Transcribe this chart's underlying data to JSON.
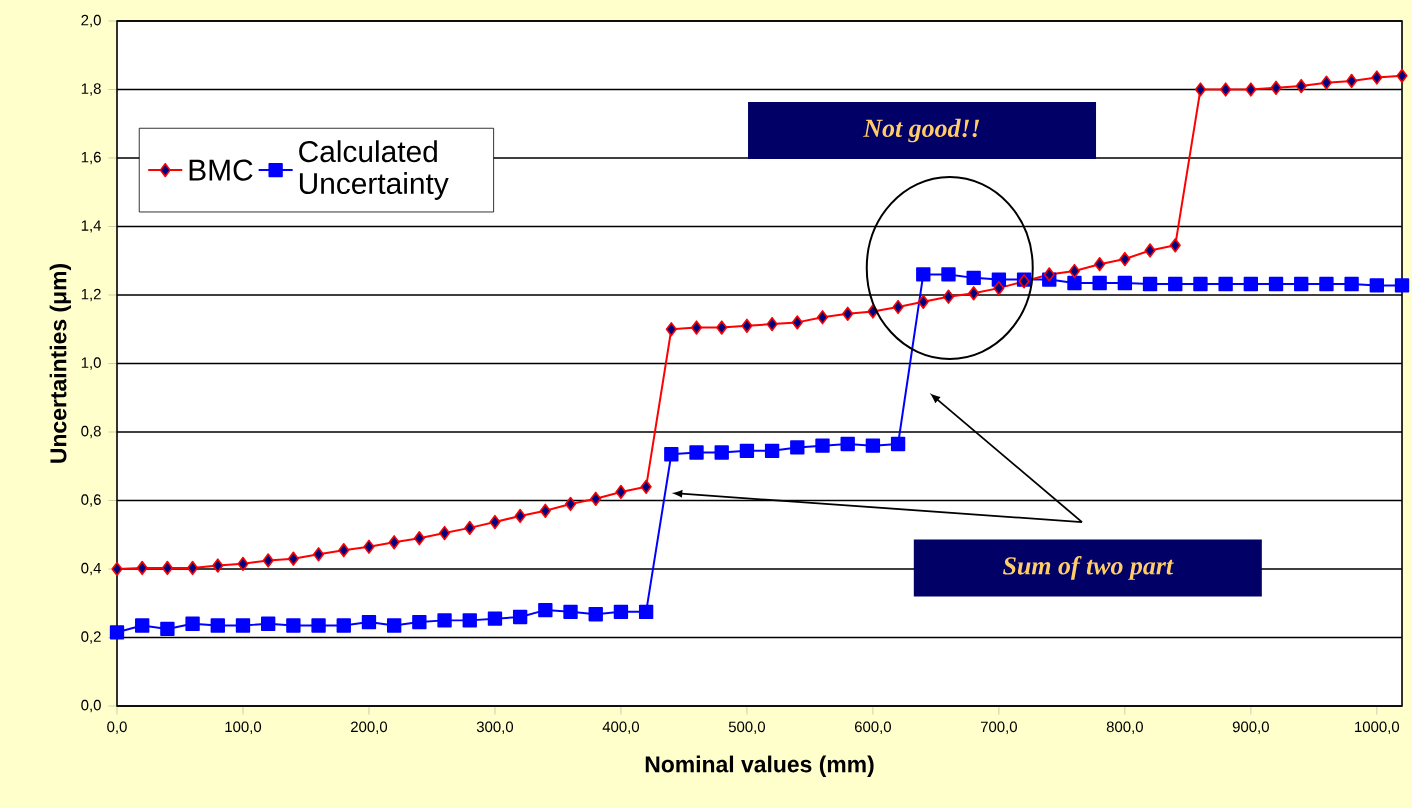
{
  "chart_data": {
    "type": "line",
    "xlabel": "Nominal values (mm)",
    "ylabel": "Uncertainties (μm)",
    "x": [
      0,
      20,
      40,
      60,
      80,
      100,
      120,
      140,
      160,
      180,
      200,
      220,
      240,
      260,
      280,
      300,
      320,
      340,
      360,
      380,
      400,
      420,
      440,
      460,
      480,
      500,
      520,
      540,
      560,
      580,
      600,
      620,
      640,
      660,
      680,
      700,
      720,
      740,
      760,
      780,
      800,
      820,
      840,
      860,
      880,
      900,
      920,
      940,
      960,
      980,
      1000,
      1020
    ],
    "series": [
      {
        "name": "BMC",
        "color": "#ff0000",
        "marker": "diamond",
        "values": [
          0.4,
          0.403,
          0.403,
          0.403,
          0.41,
          0.415,
          0.425,
          0.43,
          0.443,
          0.455,
          0.465,
          0.478,
          0.49,
          0.505,
          0.52,
          0.537,
          0.555,
          0.57,
          0.59,
          0.605,
          0.625,
          0.64,
          1.1,
          1.105,
          1.105,
          1.11,
          1.115,
          1.12,
          1.135,
          1.145,
          1.152,
          1.165,
          1.18,
          1.195,
          1.205,
          1.22,
          1.24,
          1.26,
          1.27,
          1.29,
          1.305,
          1.33,
          1.345,
          1.8,
          1.8,
          1.8,
          1.805,
          1.81,
          1.82,
          1.825,
          1.835,
          1.84
        ]
      },
      {
        "name": "Calculated Uncertainty",
        "color": "#0000ff",
        "marker": "square",
        "values": [
          0.215,
          0.235,
          0.225,
          0.24,
          0.235,
          0.235,
          0.24,
          0.235,
          0.235,
          0.235,
          0.245,
          0.235,
          0.245,
          0.25,
          0.25,
          0.255,
          0.26,
          0.28,
          0.275,
          0.268,
          0.275,
          0.275,
          0.735,
          0.74,
          0.74,
          0.745,
          0.745,
          0.755,
          0.76,
          0.765,
          0.76,
          0.765,
          1.26,
          1.26,
          1.25,
          1.245,
          1.245,
          1.245,
          1.235,
          1.235,
          1.235,
          1.232,
          1.232,
          1.232,
          1.232,
          1.232,
          1.232,
          1.232,
          1.232,
          1.232,
          1.228,
          1.228
        ]
      }
    ],
    "xlim": [
      0,
      1020
    ],
    "ylim": [
      0,
      2
    ],
    "xticks": [
      {
        "value": 0,
        "label": "0,0"
      },
      {
        "value": 100,
        "label": "100,0"
      },
      {
        "value": 200,
        "label": "200,0"
      },
      {
        "value": 300,
        "label": "300,0"
      },
      {
        "value": 400,
        "label": "400,0"
      },
      {
        "value": 500,
        "label": "500,0"
      },
      {
        "value": 600,
        "label": "600,0"
      },
      {
        "value": 700,
        "label": "700,0"
      },
      {
        "value": 800,
        "label": "800,0"
      },
      {
        "value": 900,
        "label": "900,0"
      },
      {
        "value": 1000,
        "label": "1000,0"
      }
    ],
    "yticks": [
      {
        "value": 0,
        "label": "0,0"
      },
      {
        "value": 0.2,
        "label": "0,2"
      },
      {
        "value": 0.4,
        "label": "0,4"
      },
      {
        "value": 0.6,
        "label": "0,6"
      },
      {
        "value": 0.8,
        "label": "0,8"
      },
      {
        "value": 1.0,
        "label": "1,0"
      },
      {
        "value": 1.2,
        "label": "1,2"
      },
      {
        "value": 1.4,
        "label": "1,4"
      },
      {
        "value": 1.6,
        "label": "1,6"
      },
      {
        "value": 1.8,
        "label": "1,8"
      },
      {
        "value": 2.0,
        "label": "2,0"
      }
    ],
    "grid": "y",
    "legend": "top left",
    "line_style": "solid",
    "annotations": [
      "Not good!!",
      "Sum of two part"
    ]
  }
}
